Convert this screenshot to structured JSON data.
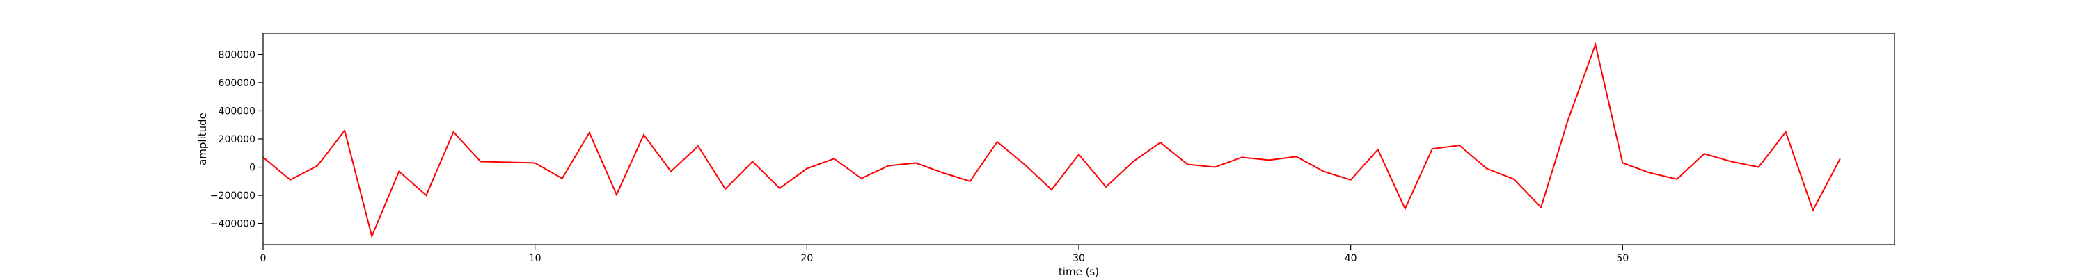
{
  "chart_data": {
    "type": "line",
    "title": "",
    "xlabel": "time (s)",
    "ylabel": "amplitude",
    "xlim": [
      0,
      60
    ],
    "ylim": [
      -550000,
      950000
    ],
    "xticks": [
      0,
      10,
      20,
      30,
      40,
      50
    ],
    "yticks": [
      -400000,
      -200000,
      0,
      200000,
      400000,
      600000,
      800000
    ],
    "grid": false,
    "series": [
      {
        "color": "#ff0000",
        "x": [
          0,
          1,
          2,
          3,
          4,
          5,
          6,
          7,
          8,
          9,
          10,
          11,
          12,
          13,
          14,
          15,
          16,
          17,
          18,
          19,
          20,
          21,
          22,
          23,
          24,
          25,
          26,
          27,
          28,
          29,
          30,
          31,
          32,
          33,
          34,
          35,
          36,
          37,
          38,
          39,
          40,
          41,
          42,
          43,
          44,
          45,
          46,
          47,
          48,
          49,
          50,
          51,
          52,
          53,
          54,
          55,
          56,
          57,
          58
        ],
        "values": [
          70000,
          -90000,
          10000,
          260000,
          -490000,
          -30000,
          -200000,
          250000,
          40000,
          35000,
          30000,
          -80000,
          245000,
          -195000,
          230000,
          -30000,
          150000,
          -155000,
          40000,
          -150000,
          -10000,
          60000,
          -80000,
          10000,
          30000,
          -40000,
          -100000,
          180000,
          20000,
          -160000,
          90000,
          -140000,
          40000,
          175000,
          20000,
          0,
          70000,
          50000,
          75000,
          -30000,
          -90000,
          125000,
          -295000,
          130000,
          155000,
          -10000,
          -85000,
          -285000,
          340000,
          870000,
          30000,
          -40000,
          -85000,
          95000,
          40000,
          0,
          250000,
          -305000,
          60000
        ]
      }
    ]
  }
}
